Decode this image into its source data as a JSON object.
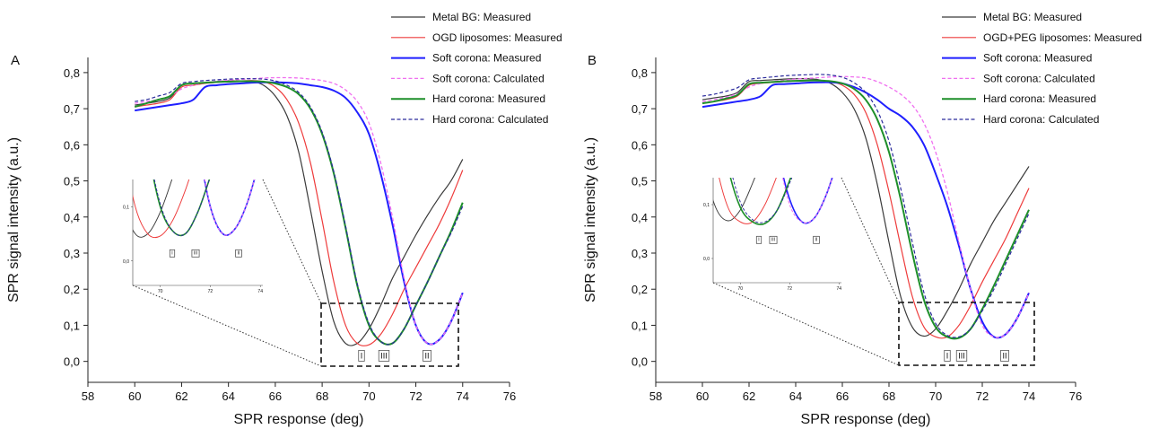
{
  "chart_data": [
    {
      "type": "line",
      "panel_label": "A",
      "x_label": "SPR response (deg)",
      "y_label": "SPR signal intensity (a.u.)",
      "x": [
        60,
        60.5,
        61,
        61.5,
        62,
        62.5,
        63,
        63.5,
        64,
        64.5,
        65,
        65.5,
        66,
        66.5,
        67,
        67.5,
        68,
        68.5,
        69,
        69.5,
        70,
        70.5,
        71,
        71.5,
        72,
        72.5,
        73,
        73.5,
        74
      ],
      "xlim": [
        58,
        76
      ],
      "xticks": [
        58,
        60,
        62,
        64,
        66,
        68,
        70,
        72,
        74,
        76
      ],
      "ylim": [
        -0.058,
        0.842
      ],
      "yticks": [
        {
          "value": 0,
          "label": "0,0"
        },
        {
          "value": 0.1,
          "label": "0,1"
        },
        {
          "value": 0.2,
          "label": "0,2"
        },
        {
          "value": 0.3,
          "label": "0,3"
        },
        {
          "value": 0.4,
          "label": "0,4"
        },
        {
          "value": 0.5,
          "label": "0,5"
        },
        {
          "value": 0.6,
          "label": "0,6"
        },
        {
          "value": 0.7,
          "label": "0,7"
        },
        {
          "value": 0.8,
          "label": "0,8"
        }
      ],
      "series": [
        {
          "name": "Metal BG: Measured",
          "color": "#3a3a3a",
          "style": "solid",
          "values": [
            0.71,
            0.715,
            0.72,
            0.73,
            0.765,
            0.77,
            0.772,
            0.775,
            0.777,
            0.777,
            0.776,
            0.765,
            0.735,
            0.68,
            0.58,
            0.42,
            0.25,
            0.11,
            0.05,
            0.05,
            0.09,
            0.155,
            0.23,
            0.29,
            0.35,
            0.405,
            0.455,
            0.5,
            0.56
          ]
        },
        {
          "name": "OGD liposomes: Measured",
          "color": "#ee3b3b",
          "style": "solid",
          "values": [
            0.705,
            0.71,
            0.715,
            0.725,
            0.76,
            0.765,
            0.77,
            0.773,
            0.776,
            0.777,
            0.778,
            0.775,
            0.76,
            0.725,
            0.66,
            0.55,
            0.39,
            0.22,
            0.1,
            0.05,
            0.046,
            0.075,
            0.13,
            0.2,
            0.26,
            0.32,
            0.38,
            0.45,
            0.53
          ]
        },
        {
          "name": "Soft corona: Measured",
          "color": "#1f1fff",
          "style": "solid",
          "values": [
            0.695,
            0.7,
            0.705,
            0.71,
            0.715,
            0.725,
            0.76,
            0.765,
            0.768,
            0.77,
            0.772,
            0.773,
            0.773,
            0.772,
            0.77,
            0.765,
            0.76,
            0.75,
            0.73,
            0.69,
            0.63,
            0.52,
            0.38,
            0.22,
            0.1,
            0.05,
            0.06,
            0.11,
            0.19
          ]
        },
        {
          "name": "Soft corona: Calculated",
          "color": "#f070f0",
          "style": "dashed",
          "values": [
            0.715,
            0.72,
            0.725,
            0.735,
            0.755,
            0.765,
            0.772,
            0.776,
            0.779,
            0.781,
            0.783,
            0.785,
            0.786,
            0.786,
            0.785,
            0.782,
            0.778,
            0.77,
            0.752,
            0.72,
            0.66,
            0.55,
            0.4,
            0.23,
            0.1,
            0.05,
            0.06,
            0.11,
            0.19
          ]
        },
        {
          "name": "Hard corona: Measured",
          "color": "#1e8f2a",
          "style": "solid",
          "values": [
            0.705,
            0.715,
            0.725,
            0.735,
            0.765,
            0.77,
            0.772,
            0.774,
            0.775,
            0.776,
            0.776,
            0.775,
            0.77,
            0.76,
            0.74,
            0.7,
            0.63,
            0.52,
            0.37,
            0.21,
            0.1,
            0.055,
            0.05,
            0.09,
            0.155,
            0.22,
            0.29,
            0.36,
            0.44
          ]
        },
        {
          "name": "Hard corona: Calculated",
          "color": "#2b2b9c",
          "style": "dashed",
          "values": [
            0.72,
            0.725,
            0.735,
            0.745,
            0.77,
            0.775,
            0.778,
            0.78,
            0.782,
            0.783,
            0.783,
            0.782,
            0.777,
            0.765,
            0.745,
            0.705,
            0.635,
            0.525,
            0.375,
            0.215,
            0.105,
            0.055,
            0.05,
            0.09,
            0.155,
            0.22,
            0.29,
            0.355,
            0.43
          ]
        }
      ],
      "annotations": [
        "I",
        "III",
        "II"
      ],
      "inset": {
        "xlim": [
          68.9,
          74.1
        ],
        "xticks": [
          70,
          72,
          74
        ],
        "ylim": [
          -0.045,
          0.15
        ],
        "yticks": [
          {
            "value": 0,
            "label": "0,0"
          },
          {
            "value": 0.1,
            "label": "0,1"
          }
        ]
      }
    },
    {
      "type": "line",
      "panel_label": "B",
      "x_label": "SPR response (deg)",
      "y_label": "SPR signal intensity (a.u.)",
      "x": [
        60,
        60.5,
        61,
        61.5,
        62,
        62.5,
        63,
        63.5,
        64,
        64.5,
        65,
        65.5,
        66,
        66.5,
        67,
        67.5,
        68,
        68.5,
        69,
        69.5,
        70,
        70.5,
        71,
        71.5,
        72,
        72.5,
        73,
        73.5,
        74
      ],
      "xlim": [
        58,
        76
      ],
      "xticks": [
        58,
        60,
        62,
        64,
        66,
        68,
        70,
        72,
        74,
        76
      ],
      "ylim": [
        -0.058,
        0.842
      ],
      "yticks": [
        {
          "value": 0,
          "label": "0,0"
        },
        {
          "value": 0.1,
          "label": "0,1"
        },
        {
          "value": 0.2,
          "label": "0,2"
        },
        {
          "value": 0.3,
          "label": "0,3"
        },
        {
          "value": 0.4,
          "label": "0,4"
        },
        {
          "value": 0.5,
          "label": "0,5"
        },
        {
          "value": 0.6,
          "label": "0,6"
        },
        {
          "value": 0.7,
          "label": "0,7"
        },
        {
          "value": 0.8,
          "label": "0,8"
        }
      ],
      "series": [
        {
          "name": "Metal BG: Measured",
          "color": "#3a3a3a",
          "style": "solid",
          "values": [
            0.725,
            0.73,
            0.735,
            0.745,
            0.775,
            0.778,
            0.78,
            0.782,
            0.783,
            0.783,
            0.78,
            0.77,
            0.745,
            0.7,
            0.62,
            0.49,
            0.33,
            0.18,
            0.095,
            0.07,
            0.09,
            0.14,
            0.2,
            0.27,
            0.33,
            0.39,
            0.44,
            0.49,
            0.54
          ]
        },
        {
          "name": "OGD+PEG liposomes: Measured",
          "color": "#ee3b3b",
          "style": "solid",
          "values": [
            0.715,
            0.72,
            0.725,
            0.735,
            0.765,
            0.77,
            0.773,
            0.775,
            0.777,
            0.778,
            0.778,
            0.775,
            0.765,
            0.74,
            0.69,
            0.6,
            0.47,
            0.32,
            0.18,
            0.095,
            0.068,
            0.068,
            0.1,
            0.155,
            0.22,
            0.28,
            0.34,
            0.41,
            0.48
          ]
        },
        {
          "name": "Soft corona: Measured",
          "color": "#1f1fff",
          "style": "solid",
          "values": [
            0.705,
            0.71,
            0.715,
            0.72,
            0.725,
            0.735,
            0.765,
            0.768,
            0.77,
            0.772,
            0.773,
            0.773,
            0.77,
            0.76,
            0.745,
            0.725,
            0.7,
            0.68,
            0.65,
            0.6,
            0.52,
            0.43,
            0.32,
            0.2,
            0.11,
            0.068,
            0.075,
            0.12,
            0.19
          ]
        },
        {
          "name": "Soft corona: Calculated",
          "color": "#f070f0",
          "style": "dashed",
          "values": [
            0.72,
            0.725,
            0.732,
            0.742,
            0.76,
            0.77,
            0.775,
            0.779,
            0.782,
            0.784,
            0.786,
            0.788,
            0.789,
            0.788,
            0.785,
            0.775,
            0.76,
            0.74,
            0.71,
            0.66,
            0.58,
            0.47,
            0.33,
            0.2,
            0.1,
            0.068,
            0.075,
            0.12,
            0.19
          ]
        },
        {
          "name": "Hard corona: Measured",
          "color": "#1e8f2a",
          "style": "solid",
          "values": [
            0.715,
            0.72,
            0.728,
            0.738,
            0.768,
            0.772,
            0.774,
            0.776,
            0.777,
            0.778,
            0.778,
            0.776,
            0.77,
            0.755,
            0.725,
            0.67,
            0.58,
            0.45,
            0.3,
            0.17,
            0.095,
            0.068,
            0.065,
            0.09,
            0.145,
            0.21,
            0.28,
            0.35,
            0.42
          ]
        },
        {
          "name": "Hard corona: Calculated",
          "color": "#2b2b9c",
          "style": "dashed",
          "values": [
            0.735,
            0.74,
            0.748,
            0.758,
            0.78,
            0.785,
            0.788,
            0.791,
            0.793,
            0.794,
            0.795,
            0.793,
            0.787,
            0.772,
            0.745,
            0.695,
            0.61,
            0.48,
            0.33,
            0.19,
            0.105,
            0.072,
            0.068,
            0.09,
            0.14,
            0.2,
            0.27,
            0.34,
            0.41
          ]
        }
      ],
      "annotations": [
        "I",
        "III",
        "II"
      ],
      "inset": {
        "xlim": [
          68.9,
          74.1
        ],
        "xticks": [
          70,
          72,
          74
        ],
        "ylim": [
          -0.045,
          0.15
        ],
        "yticks": [
          {
            "value": 0,
            "label": "0,0"
          },
          {
            "value": 0.1,
            "label": "0,1"
          }
        ]
      }
    }
  ]
}
